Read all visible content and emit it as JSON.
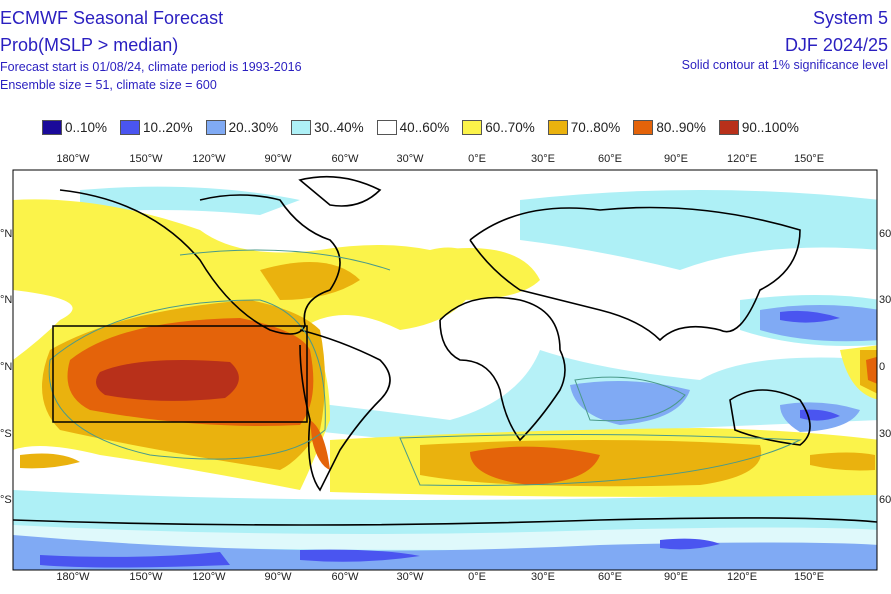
{
  "header": {
    "title": "ECMWF Seasonal Forecast",
    "subtitle": "Prob(MSLP > median)",
    "line1": "Forecast start is 01/08/24, climate period is 1993-2016",
    "line2": "Ensemble size = 51, climate size = 600",
    "system": "System 5",
    "period": "DJF 2024/25",
    "note": "Solid contour at 1% significance level"
  },
  "legend": [
    {
      "label": "0..10%",
      "color": "#1a0a9a"
    },
    {
      "label": "10..20%",
      "color": "#4a55f0"
    },
    {
      "label": "20..30%",
      "color": "#80aaf4"
    },
    {
      "label": "30..40%",
      "color": "#aef0f6"
    },
    {
      "label": "40..60%",
      "color": "#ffffff"
    },
    {
      "label": "60..70%",
      "color": "#fbf34a"
    },
    {
      "label": "70..80%",
      "color": "#eab20e"
    },
    {
      "label": "80..90%",
      "color": "#e4630a"
    },
    {
      "label": "90..100%",
      "color": "#b8301a"
    }
  ],
  "lon_labels": [
    "180°W",
    "150°W",
    "120°W",
    "90°W",
    "60°W",
    "30°W",
    "0°E",
    "30°E",
    "60°E",
    "90°E",
    "120°E",
    "150°E"
  ],
  "lat_left": [
    "°N",
    "°N",
    "°N",
    "°S",
    "°S"
  ],
  "lat_right": [
    "60",
    "30",
    "0",
    "30",
    "60"
  ]
}
